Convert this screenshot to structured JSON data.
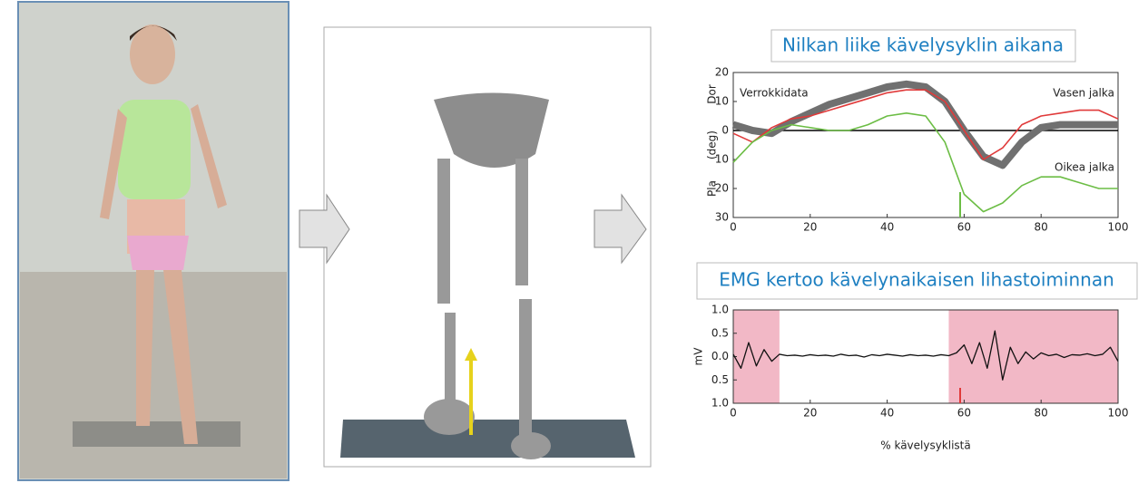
{
  "chart_data": [
    {
      "type": "line",
      "title": "Nilkan liike kävelysyklin aikana",
      "y_axis_labels": [
        "Dor",
        "(deg)",
        "Pla"
      ],
      "x": [
        0,
        5,
        10,
        15,
        20,
        25,
        30,
        35,
        40,
        45,
        50,
        55,
        60,
        65,
        70,
        75,
        80,
        85,
        90,
        95,
        100
      ],
      "series": [
        {
          "name": "Verrokkidata",
          "color": "#707070",
          "values": [
            2,
            0,
            -1,
            3,
            6,
            9,
            11,
            13,
            15,
            16,
            15,
            10,
            0,
            -9,
            -12,
            -4,
            1,
            2,
            2,
            2,
            2
          ]
        },
        {
          "name": "Vasen jalka",
          "color": "#e03a3a",
          "values": [
            -1,
            -4,
            1,
            4,
            5,
            7,
            9,
            11,
            13,
            14,
            14,
            10,
            0,
            -10,
            -6,
            2,
            5,
            6,
            7,
            7,
            4
          ]
        },
        {
          "name": "Oikea jalka",
          "color": "#6cbd45",
          "values": [
            -11,
            -4,
            0,
            2,
            1,
            0,
            0,
            2,
            5,
            6,
            5,
            -4,
            -22,
            -28,
            -25,
            -19,
            -16,
            -16,
            -18,
            -20,
            -20
          ]
        }
      ],
      "xlim": [
        0,
        100
      ],
      "xticks": [
        0,
        20,
        40,
        60,
        80,
        100
      ],
      "ylim": [
        -30,
        20
      ],
      "yticks": [
        20,
        10,
        0,
        {
          "value": -10,
          "label": "10"
        },
        {
          "value": -20,
          "label": "20"
        },
        {
          "value": -30,
          "label": "30"
        }
      ]
    },
    {
      "type": "line",
      "title": "EMG kertoo kävelynaikaisen lihastoiminnan",
      "ylabel": "mV",
      "xlabel": "% kävelysyklistä",
      "x": [
        0,
        2,
        4,
        6,
        8,
        10,
        12,
        14,
        16,
        18,
        20,
        22,
        24,
        26,
        28,
        30,
        32,
        34,
        36,
        38,
        40,
        42,
        44,
        46,
        48,
        50,
        52,
        54,
        56,
        58,
        60,
        62,
        64,
        66,
        68,
        70,
        72,
        74,
        76,
        78,
        80,
        82,
        84,
        86,
        88,
        90,
        92,
        94,
        96,
        98,
        100
      ],
      "values": [
        0.05,
        -0.25,
        0.3,
        -0.2,
        0.15,
        -0.1,
        0.05,
        0.02,
        0.03,
        0.01,
        0.04,
        0.02,
        0.03,
        0.01,
        0.05,
        0.02,
        0.03,
        -0.01,
        0.04,
        0.02,
        0.05,
        0.03,
        0.01,
        0.04,
        0.02,
        0.03,
        0.01,
        0.04,
        0.02,
        0.08,
        0.25,
        -0.15,
        0.3,
        -0.25,
        0.55,
        -0.5,
        0.2,
        -0.15,
        0.1,
        -0.05,
        0.08,
        0.02,
        0.05,
        -0.02,
        0.04,
        0.03,
        0.06,
        0.02,
        0.05,
        0.2,
        -0.1
      ],
      "color": "#111111",
      "shaded_ranges": [
        [
          0,
          12
        ],
        [
          56,
          100
        ]
      ],
      "shade_color": "#f2b8c6",
      "xlim": [
        0,
        100
      ],
      "xticks": [
        0,
        20,
        40,
        60,
        80,
        100
      ],
      "ylim": [
        -1,
        1
      ],
      "yticks": [
        {
          "value": 1,
          "label": "1.0"
        },
        0.5,
        {
          "value": 0,
          "label": "0.0"
        },
        {
          "value": -0.5,
          "label": "0.5"
        },
        {
          "value": -1,
          "label": "1.0"
        }
      ]
    }
  ]
}
